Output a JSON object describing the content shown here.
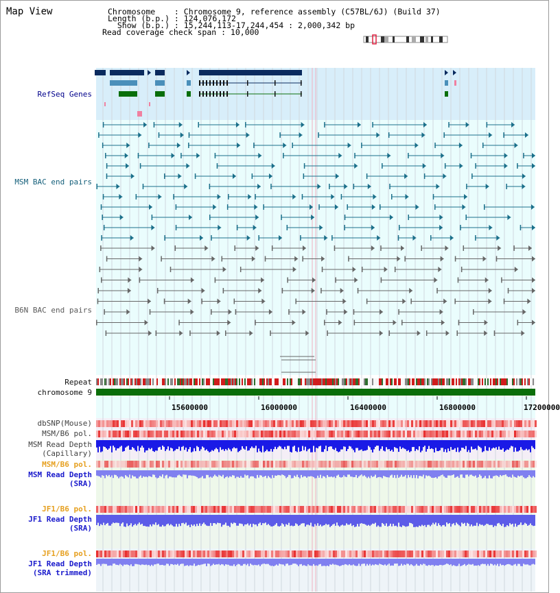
{
  "title": "Map View",
  "info": {
    "chromosome": "Chromosome    : Chromosome 9, reference assembly (C57BL/6J) (Build 37)",
    "length": "Length (b.p.) : 124,076,172",
    "show": "  Show (b.p.) : 15,244,113-17,244,454 : 2,000,342 bp",
    "coverage": "Read coverage check span : 10,000"
  },
  "tracks": {
    "refseq": "RefSeq Genes",
    "msm_bac": "MSM BAC end pairs",
    "b6n_bac": "B6N BAC end pairs",
    "repeat": "Repeat",
    "chromosome": "chromosome 9",
    "dbsnp": "dbSNP(Mouse)",
    "msm_b6_pol1": "MSM/B6 pol.",
    "msm_read_depth_cap": "MSM Read Depth\n(Capillary)",
    "msm_b6_pol2": "MSM/B6 pol.",
    "msm_read_depth_sra": "MSM Read Depth\n(SRA)",
    "jf1_b6_pol1": "JF1/B6 pol.",
    "jf1_read_depth_sra": "JF1 Read Depth\n(SRA)",
    "jf1_b6_pol2": "JF1/B6 pol.",
    "jf1_read_depth_trim": "JF1 Read Depth\n(SRA trimmed)"
  },
  "axis": {
    "ticks": [
      "15600000",
      "16000000",
      "16400000",
      "16800000",
      "17200000"
    ]
  },
  "colors": {
    "refseq_bg": "#d8eefa",
    "bac_bg": "#eafdfd",
    "gene_navy": "#0a2a5e",
    "gene_steel": "#4a8fba",
    "gene_green": "#0a6e0a",
    "msm_teal": "#1a6f8a",
    "b6n_grey": "#666666",
    "chromosome_green": "#0a6e0a",
    "snp_red": "#e03030",
    "depth_blue": "#1a1ae6",
    "depth_light_blue": "#8080f0"
  }
}
